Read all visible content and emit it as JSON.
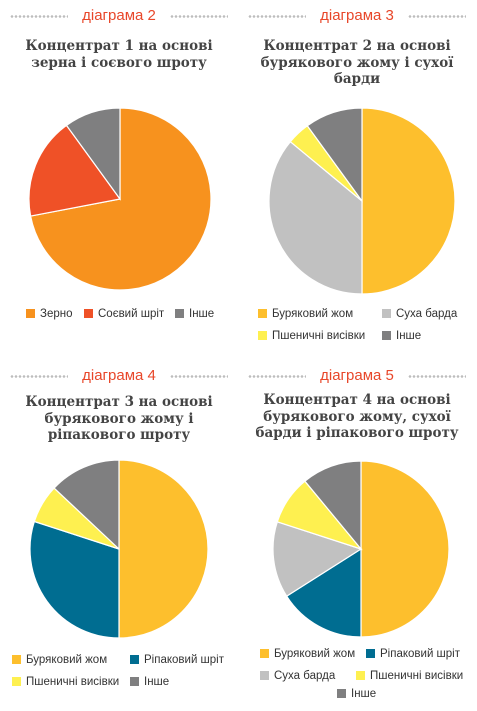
{
  "charts": [
    {
      "label": "діаграма 2",
      "title": "Концентрат 1 на основі зерна і соєвого шроту",
      "chart_data": {
        "type": "pie",
        "categories": [
          "Зерно",
          "Соєвий шріт",
          "Інше"
        ],
        "values": [
          72,
          18,
          10
        ],
        "colors": [
          "#f7921e",
          "#ef5127",
          "#7f7f80"
        ],
        "legend": "bottom"
      }
    },
    {
      "label": "діаграма 3",
      "title": "Концентрат 2 на основі бурякового жому і сухої барди",
      "chart_data": {
        "type": "pie",
        "categories": [
          "Буряковий жом",
          "Суха барда",
          "Пшеничні висівки",
          "Інше"
        ],
        "values": [
          50,
          36,
          4,
          10
        ],
        "colors": [
          "#fdbf2d",
          "#c1c1c1",
          "#fef050",
          "#7f7f80"
        ],
        "legend": "bottom"
      }
    },
    {
      "label": "діаграма 4",
      "title": "Концентрат 3 на основі бурякового жому і ріпакового шроту",
      "chart_data": {
        "type": "pie",
        "categories": [
          "Буряковий жом",
          "Ріпаковий шріт",
          "Пшеничні висівки",
          "Інше"
        ],
        "values": [
          50,
          30,
          7,
          13
        ],
        "colors": [
          "#fdbf2d",
          "#006d91",
          "#fef050",
          "#7f7f80"
        ],
        "legend": "bottom"
      }
    },
    {
      "label": "діаграма 5",
      "title": "Концентрат 4 на основі бурякового жому, сухої барди і ріпакового шроту",
      "chart_data": {
        "type": "pie",
        "categories": [
          "Буряковий жом",
          "Ріпаковий шріт",
          "Суха барда",
          "Пшеничні висівки",
          "Інше"
        ],
        "values": [
          50,
          16,
          14,
          9,
          11
        ],
        "colors": [
          "#fdbf2d",
          "#006d91",
          "#c1c1c1",
          "#fef050",
          "#7f7f80"
        ],
        "legend": "bottom"
      }
    }
  ]
}
